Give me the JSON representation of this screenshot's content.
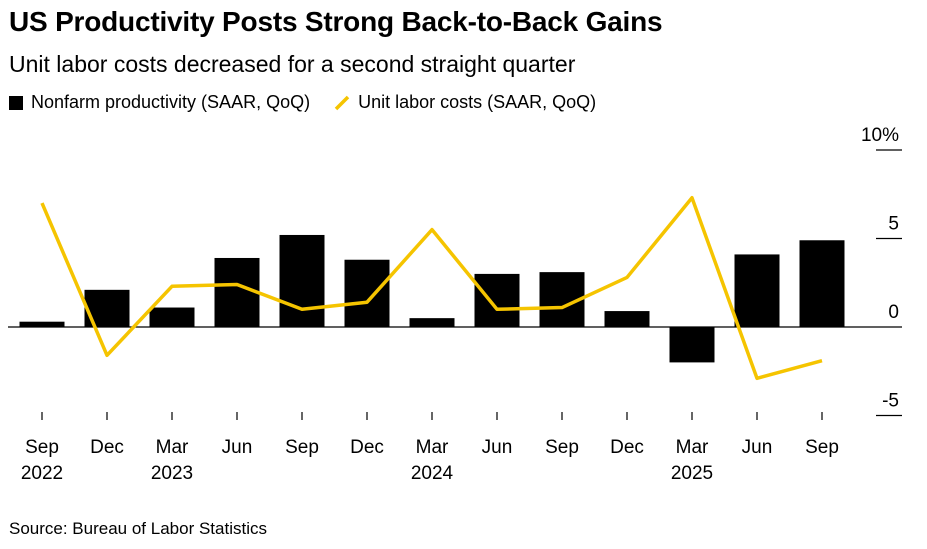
{
  "chart_data": {
    "type": "bar+line",
    "title": "US Productivity Posts Strong Back-to-Back Gains",
    "subtitle": "Unit labor costs decreased for a second straight quarter",
    "categories": [
      "Sep 2022",
      "Dec 2022",
      "Mar 2023",
      "Jun 2023",
      "Sep 2023",
      "Dec 2023",
      "Mar 2024",
      "Jun 2024",
      "Sep 2024",
      "Dec 2024",
      "Mar 2025",
      "Jun 2025",
      "Sep 2025"
    ],
    "x_tick_labels": [
      {
        "month": "Sep",
        "year": "2022"
      },
      {
        "month": "Dec",
        "year": ""
      },
      {
        "month": "Mar",
        "year": "2023"
      },
      {
        "month": "Jun",
        "year": ""
      },
      {
        "month": "Sep",
        "year": ""
      },
      {
        "month": "Dec",
        "year": ""
      },
      {
        "month": "Mar",
        "year": "2024"
      },
      {
        "month": "Jun",
        "year": ""
      },
      {
        "month": "Sep",
        "year": ""
      },
      {
        "month": "Dec",
        "year": ""
      },
      {
        "month": "Mar",
        "year": "2025"
      },
      {
        "month": "Jun",
        "year": ""
      },
      {
        "month": "Sep",
        "year": ""
      }
    ],
    "series": [
      {
        "name": "Nonfarm productivity (SAAR, QoQ)",
        "kind": "bar",
        "color": "#000000",
        "values": [
          0.3,
          2.1,
          1.1,
          3.9,
          5.2,
          3.8,
          0.5,
          3.0,
          3.1,
          0.9,
          -2.0,
          4.1,
          4.9
        ]
      },
      {
        "name": "Unit labor costs (SAAR, QoQ)",
        "kind": "line",
        "color": "#f5c400",
        "values": [
          7.0,
          -1.6,
          2.3,
          2.4,
          1.0,
          1.4,
          5.5,
          1.0,
          1.1,
          2.8,
          7.3,
          -2.9,
          -1.9
        ]
      }
    ],
    "y_ticks": [
      {
        "value": 10,
        "label": "10%"
      },
      {
        "value": 5,
        "label": "5"
      },
      {
        "value": 0,
        "label": "0"
      },
      {
        "value": -5,
        "label": "-5"
      }
    ],
    "ylim": [
      -5,
      10
    ],
    "y_axis_side": "right",
    "grid": false,
    "legend_position": "top-left",
    "source": "Source: Bureau of Labor Statistics"
  }
}
